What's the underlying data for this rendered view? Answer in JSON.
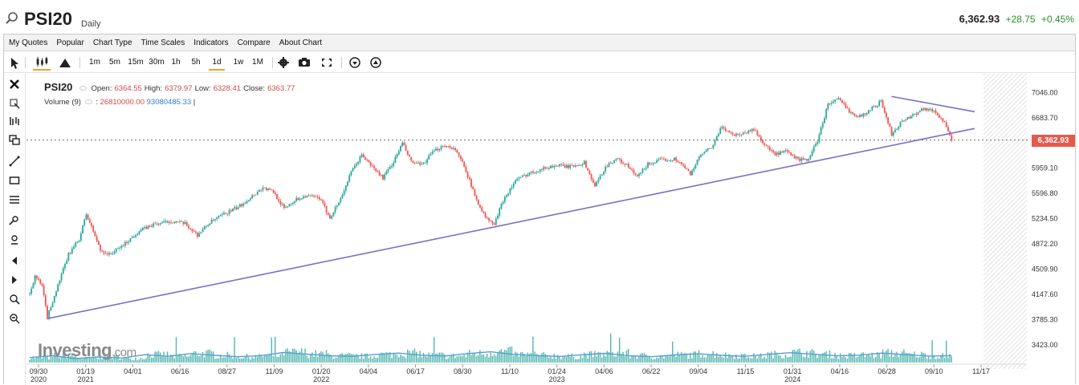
{
  "header": {
    "symbol": "PSI20",
    "period": "Daily",
    "last_price": "6,362.93",
    "change": "+28.75",
    "change_pct": "+0.45%"
  },
  "menu": [
    "My Quotes",
    "Popular",
    "Chart Type",
    "Time Scales",
    "Indicators",
    "Compare",
    "About Chart"
  ],
  "toolbar": {
    "intervals": [
      "1m",
      "5m",
      "15m",
      "30m",
      "1h",
      "5h",
      "1d",
      "1w",
      "1M"
    ],
    "active_interval": "1d"
  },
  "legend": {
    "name": "PSI20",
    "open_label": "Open:",
    "open": "6364.55",
    "high_label": "High:",
    "high": "6379.97",
    "low_label": "Low:",
    "low": "6328.41",
    "close_label": "Close:",
    "close": "6363.77",
    "volume_label": "Volume (9)",
    "volume": "26810000.00",
    "volume_ma": "93080485.33"
  },
  "watermark": {
    "brand": "Investing",
    "suffix": ".com"
  },
  "colors": {
    "up": "#26a69a",
    "down": "#ef5350",
    "trendline": "#7b6fc4",
    "price_tag": "#e8574c",
    "volume": "#26a69a",
    "volume_ma": "#5b9bd5"
  },
  "chart_data": {
    "type": "candlestick",
    "title": "PSI20",
    "current_price": 6362.93,
    "y_axis": {
      "ticks": [
        "7046.00",
        "6683.70",
        "5959.10",
        "5596.80",
        "5234.50",
        "4872.20",
        "4509.90",
        "4147.60",
        "3785.30",
        "3423.00"
      ],
      "ylim": [
        3330,
        7200
      ]
    },
    "x_axis": {
      "ticks": [
        {
          "label": "09/30",
          "year": "2020"
        },
        {
          "label": "01/19",
          "year": "2021"
        },
        {
          "label": "04/01",
          "year": ""
        },
        {
          "label": "06/16",
          "year": ""
        },
        {
          "label": "08/27",
          "year": ""
        },
        {
          "label": "11/09",
          "year": ""
        },
        {
          "label": "01/20",
          "year": "2022"
        },
        {
          "label": "04/04",
          "year": ""
        },
        {
          "label": "06/17",
          "year": ""
        },
        {
          "label": "08/30",
          "year": ""
        },
        {
          "label": "11/10",
          "year": ""
        },
        {
          "label": "01/24",
          "year": "2023"
        },
        {
          "label": "04/06",
          "year": ""
        },
        {
          "label": "06/22",
          "year": ""
        },
        {
          "label": "09/04",
          "year": ""
        },
        {
          "label": "11/15",
          "year": ""
        },
        {
          "label": "01/31",
          "year": "2024"
        },
        {
          "label": "04/16",
          "year": ""
        },
        {
          "label": "06/28",
          "year": ""
        },
        {
          "label": "09/10",
          "year": ""
        },
        {
          "label": "11/17",
          "year": ""
        }
      ]
    },
    "price_path": [
      [
        0,
        4150
      ],
      [
        3,
        4420
      ],
      [
        7,
        4260
      ],
      [
        10,
        3820
      ],
      [
        16,
        4280
      ],
      [
        22,
        4720
      ],
      [
        28,
        4940
      ],
      [
        32,
        5300
      ],
      [
        36,
        5050
      ],
      [
        40,
        4780
      ],
      [
        45,
        4720
      ],
      [
        50,
        4800
      ],
      [
        55,
        4900
      ],
      [
        62,
        5060
      ],
      [
        70,
        5150
      ],
      [
        80,
        5200
      ],
      [
        88,
        5160
      ],
      [
        95,
        5000
      ],
      [
        102,
        5180
      ],
      [
        110,
        5300
      ],
      [
        118,
        5400
      ],
      [
        126,
        5560
      ],
      [
        132,
        5680
      ],
      [
        138,
        5620
      ],
      [
        144,
        5380
      ],
      [
        150,
        5500
      ],
      [
        156,
        5560
      ],
      [
        164,
        5530
      ],
      [
        170,
        5250
      ],
      [
        176,
        5520
      ],
      [
        182,
        5900
      ],
      [
        188,
        6150
      ],
      [
        194,
        5980
      ],
      [
        200,
        5820
      ],
      [
        206,
        6050
      ],
      [
        211,
        6320
      ],
      [
        216,
        6050
      ],
      [
        222,
        6000
      ],
      [
        228,
        6180
      ],
      [
        234,
        6290
      ],
      [
        240,
        6250
      ],
      [
        246,
        6000
      ],
      [
        252,
        5560
      ],
      [
        258,
        5250
      ],
      [
        263,
        5150
      ],
      [
        268,
        5500
      ],
      [
        275,
        5780
      ],
      [
        282,
        5880
      ],
      [
        290,
        5950
      ],
      [
        298,
        6000
      ],
      [
        306,
        5980
      ],
      [
        314,
        6040
      ],
      [
        320,
        5700
      ],
      [
        326,
        5980
      ],
      [
        332,
        6100
      ],
      [
        338,
        6000
      ],
      [
        344,
        5830
      ],
      [
        350,
        6020
      ],
      [
        358,
        6080
      ],
      [
        366,
        6090
      ],
      [
        374,
        5880
      ],
      [
        380,
        6150
      ],
      [
        386,
        6250
      ],
      [
        392,
        6560
      ],
      [
        398,
        6440
      ],
      [
        404,
        6460
      ],
      [
        410,
        6520
      ],
      [
        416,
        6300
      ],
      [
        422,
        6150
      ],
      [
        428,
        6200
      ],
      [
        434,
        6100
      ],
      [
        440,
        6060
      ],
      [
        446,
        6350
      ],
      [
        452,
        6880
      ],
      [
        458,
        6950
      ],
      [
        464,
        6780
      ],
      [
        470,
        6700
      ],
      [
        476,
        6800
      ],
      [
        482,
        6920
      ],
      [
        488,
        6450
      ],
      [
        494,
        6640
      ],
      [
        500,
        6720
      ],
      [
        506,
        6820
      ],
      [
        512,
        6780
      ],
      [
        518,
        6620
      ],
      [
        522,
        6340
      ]
    ],
    "volume_path": [
      0.22,
      0.3,
      0.18,
      0.25,
      0.2,
      0.35,
      0.28,
      0.4,
      0.32,
      0.26,
      0.3,
      0.45,
      0.38,
      0.3,
      0.28,
      0.36,
      0.42,
      0.33,
      0.29,
      0.4,
      0.48,
      0.36,
      0.31,
      0.27,
      0.35,
      0.41,
      0.3,
      0.26,
      0.34,
      0.39,
      0.32,
      0.28,
      0.36,
      0.44,
      0.37,
      0.3,
      0.33,
      0.42,
      0.35,
      0.29,
      0.3
    ],
    "trendlines": [
      {
        "from": [
          10,
          3800
        ],
        "to": [
          535,
          6530
        ]
      },
      {
        "from": [
          488,
          6990
        ],
        "to": [
          535,
          6770
        ]
      }
    ]
  }
}
